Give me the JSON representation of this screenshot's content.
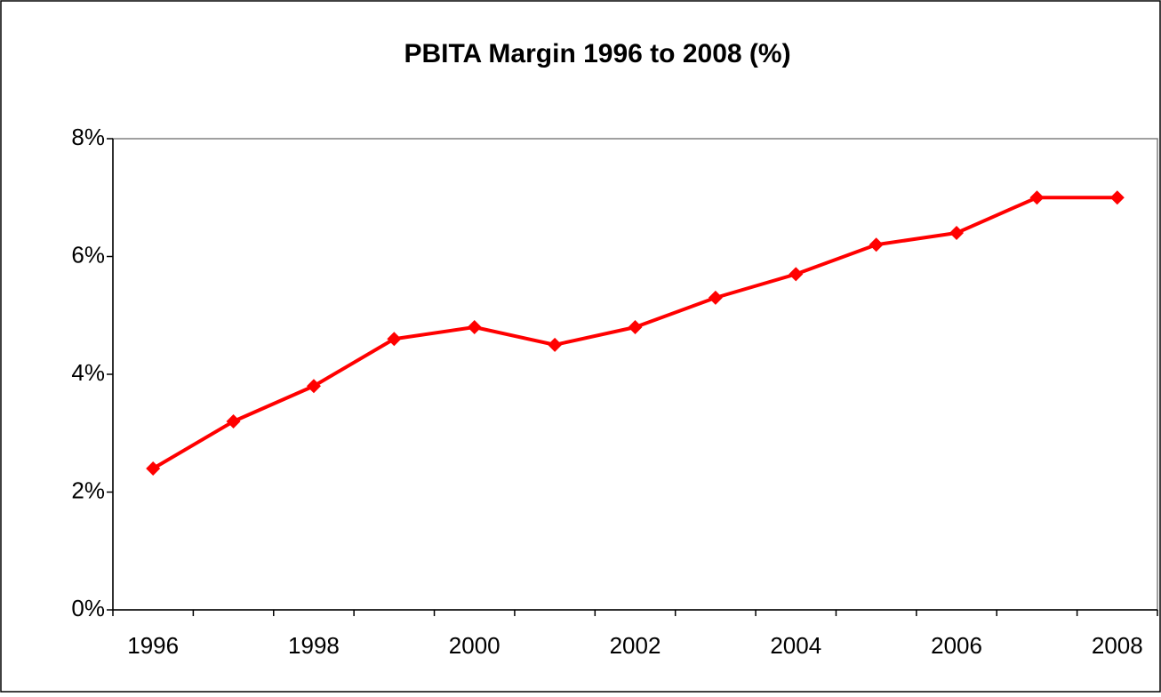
{
  "chart_data": {
    "type": "line",
    "title": "PBITA Margin 1996 to 2008 (%)",
    "categories": [
      "1996",
      null,
      "1998",
      null,
      "2000",
      null,
      "2002",
      null,
      "2004",
      null,
      "2006",
      null,
      "2008"
    ],
    "series": [
      {
        "name": "PBITA Margin",
        "color": "#ff0000",
        "values": [
          2.4,
          3.2,
          3.8,
          4.6,
          4.8,
          4.5,
          4.8,
          5.3,
          5.7,
          6.2,
          6.4,
          7.0,
          7.0
        ]
      }
    ],
    "ylim": [
      0,
      8
    ],
    "yticks": [
      {
        "value": 0,
        "label": "0%"
      },
      {
        "value": 2,
        "label": "2%"
      },
      {
        "value": 4,
        "label": "4%"
      },
      {
        "value": 6,
        "label": "6%"
      },
      {
        "value": 8,
        "label": "8%"
      }
    ],
    "grid": false,
    "legend": false
  }
}
